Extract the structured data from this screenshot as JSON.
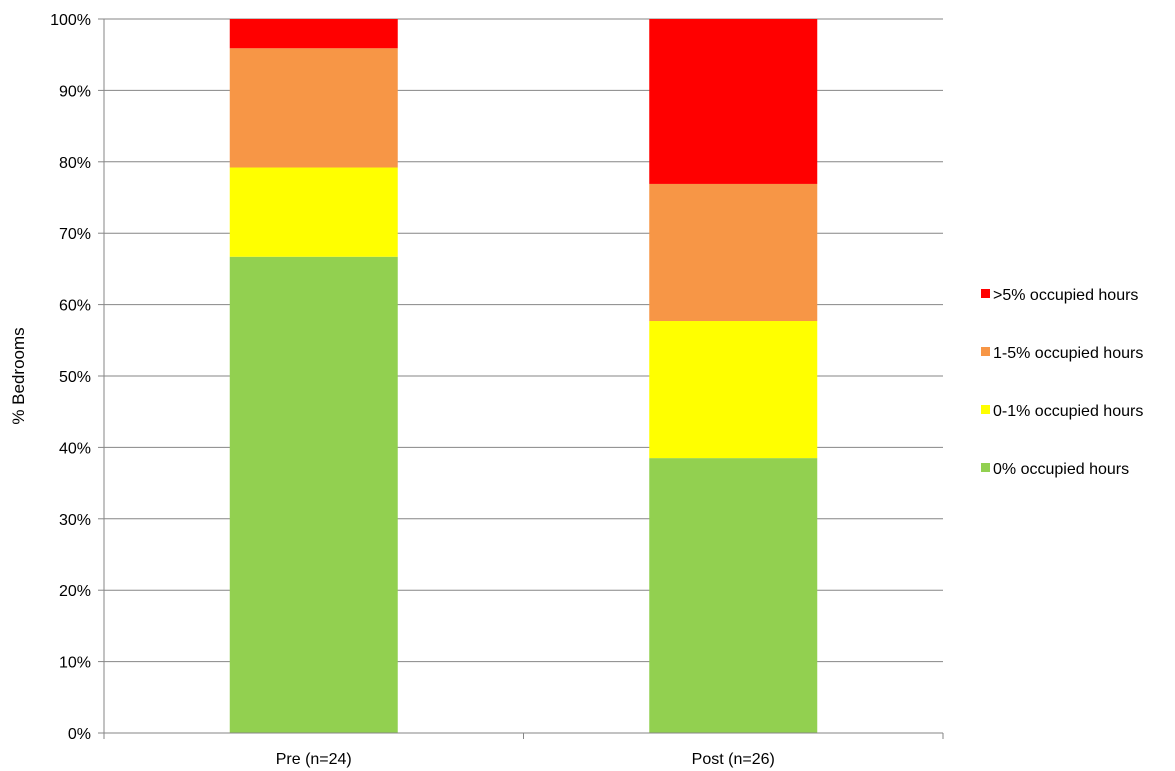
{
  "chart_data": {
    "type": "bar",
    "stacked": true,
    "categories": [
      "Pre (n=24)",
      "Post (n=26)"
    ],
    "series": [
      {
        "name": "0% occupied hours",
        "color": "#92d050",
        "values": [
          66.7,
          38.5
        ]
      },
      {
        "name": "0-1% occupied hours",
        "color": "#ffff00",
        "values": [
          12.5,
          19.2
        ]
      },
      {
        "name": "1-5% occupied hours",
        "color": "#f79646",
        "values": [
          16.7,
          19.2
        ]
      },
      {
        "name": ">5% occupied hours",
        "color": "#ff0000",
        "values": [
          4.1,
          23.1
        ]
      }
    ],
    "legend_order": [
      ">5% occupied hours",
      "1-5% occupied hours",
      "0-1% occupied hours",
      "0% occupied hours"
    ],
    "ylabel": "% Bedrooms",
    "xlabel": "",
    "ylim": [
      0,
      100
    ],
    "yticks": [
      "0%",
      "10%",
      "20%",
      "30%",
      "40%",
      "50%",
      "60%",
      "70%",
      "80%",
      "90%",
      "100%"
    ],
    "grid": true,
    "legend_position": "right"
  }
}
